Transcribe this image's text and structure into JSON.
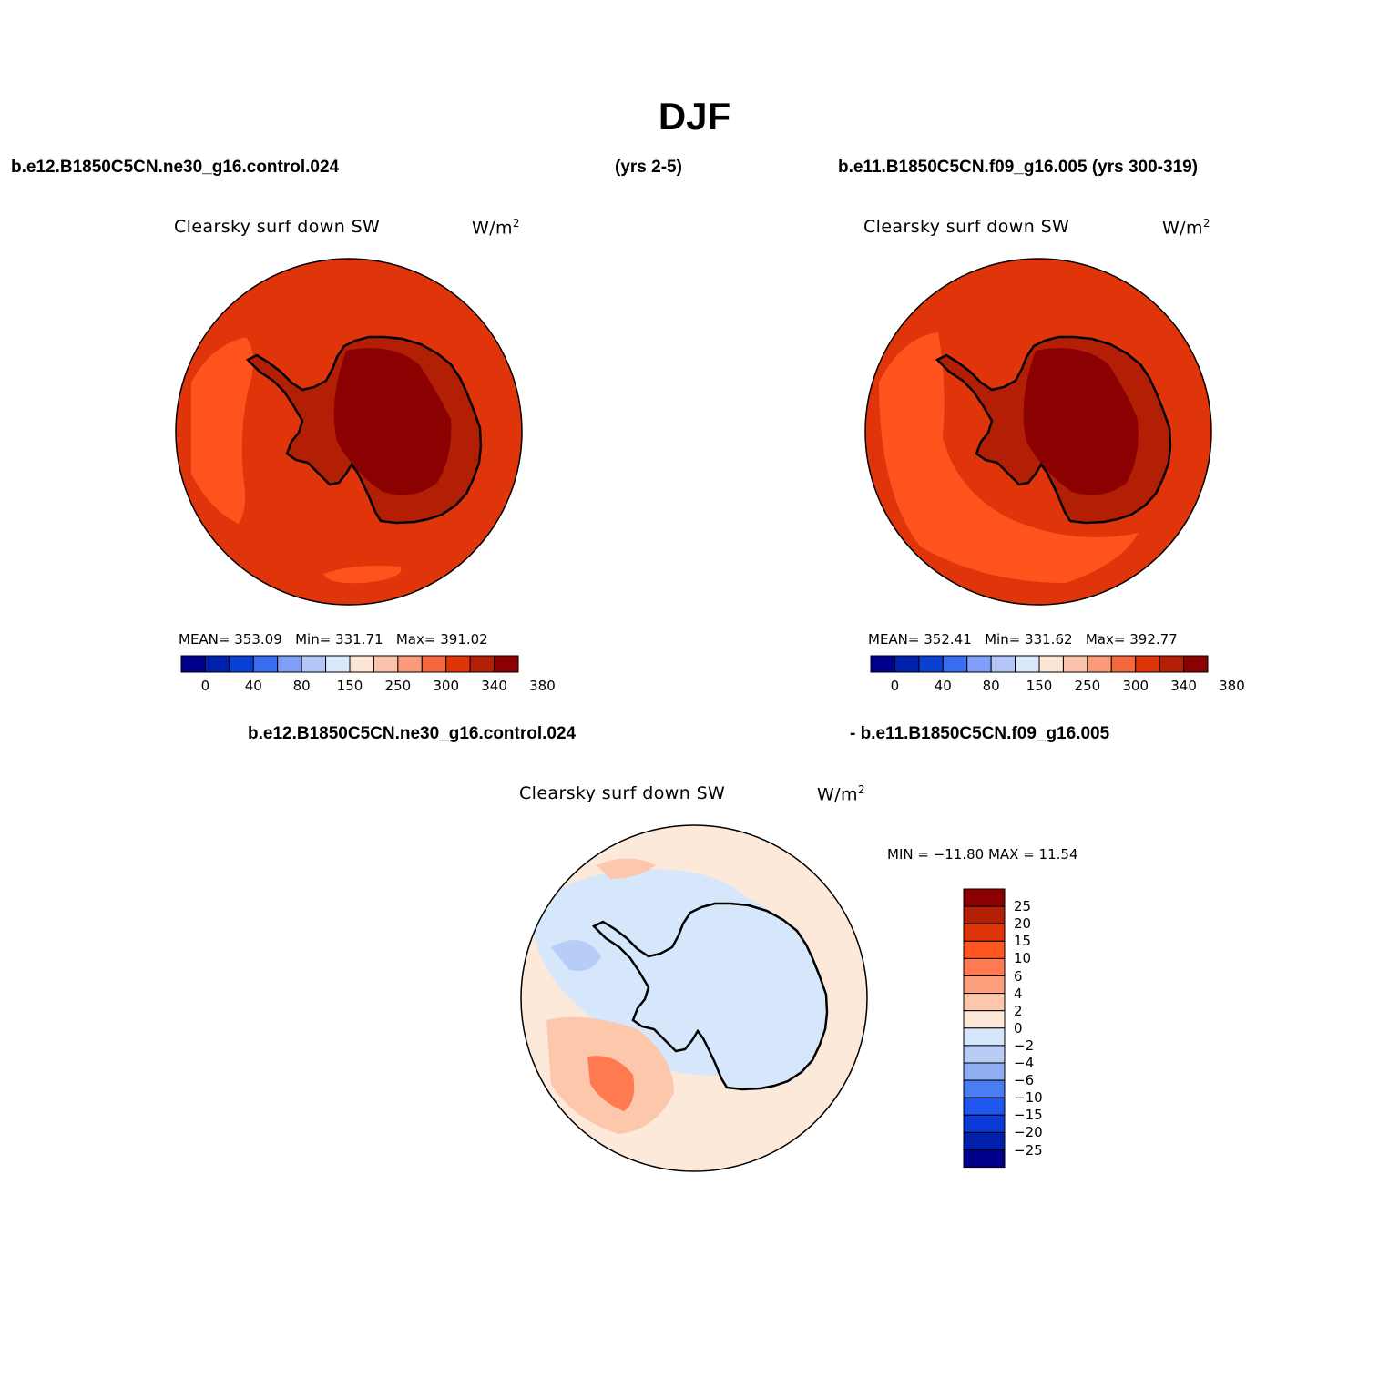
{
  "title": "DJF",
  "headers": {
    "left": "b.e12.B1850C5CN.ne30_g16.control.024",
    "middle": "(yrs 2-5)",
    "right": "b.e11.B1850C5CN.f09_g16.005 (yrs 300-319)",
    "diff_left": "b.e12.B1850C5CN.ne30_g16.control.024",
    "diff_right": "- b.e11.B1850C5CN.f09_g16.005"
  },
  "panels": [
    {
      "variable": "Clearsky surf down SW",
      "units": "W/m",
      "units_sup": "2",
      "stats": {
        "mean_label": "MEAN=",
        "mean": "353.09",
        "min_label": "Min=",
        "min": "331.71",
        "max_label": "Max=",
        "max": "391.02"
      }
    },
    {
      "variable": "Clearsky surf down SW",
      "units": "W/m",
      "units_sup": "2",
      "stats": {
        "mean_label": "MEAN=",
        "mean": "352.41",
        "min_label": "Min=",
        "min": "331.62",
        "max_label": "Max=",
        "max": "392.77"
      }
    },
    {
      "variable": "Clearsky surf down SW",
      "units": "W/m",
      "units_sup": "2",
      "stats_text": "MIN = −11.80 MAX =  11.54"
    }
  ],
  "abs_colorbar": {
    "colors": [
      "#00008b",
      "#0022aa",
      "#0b40d4",
      "#3a6cf0",
      "#7f9ef5",
      "#b3c6f7",
      "#d9e7fb",
      "#fde5d4",
      "#fcc3aa",
      "#f99b78",
      "#f4673f",
      "#e0340a",
      "#b31f05",
      "#8b0000"
    ],
    "tick_labels": [
      "0",
      "40",
      "80",
      "150",
      "250",
      "300",
      "340",
      "380"
    ]
  },
  "diff_colorbar": {
    "colors": [
      "#8b0000",
      "#b31f05",
      "#e0340a",
      "#ff5722",
      "#ff7a50",
      "#fc9f7c",
      "#fdc7ac",
      "#fde9d9",
      "#d6e7fb",
      "#b7cdf6",
      "#8faef2",
      "#4a7cf2",
      "#1e56ee",
      "#0a3ad8",
      "#0022aa",
      "#00008b"
    ],
    "tick_labels": [
      "25",
      "20",
      "15",
      "10",
      "6",
      "4",
      "2",
      "0",
      "−2",
      "−4",
      "−6",
      "−10",
      "−15",
      "−20",
      "−25"
    ]
  },
  "map_colors": {
    "ocean_high": "#e0340a",
    "ocean_low": "#ff521d",
    "coast_band": "#b31f05",
    "interior": "#8b0000",
    "diff_pos_light": "#fde9d9",
    "diff_pos_mid": "#fdc7ac",
    "diff_pos_strong": "#ff7a50",
    "diff_neg_light": "#d6e7fb",
    "diff_neg_mid": "#b7cdf6",
    "diff_neg_strong": "#8faef2"
  }
}
